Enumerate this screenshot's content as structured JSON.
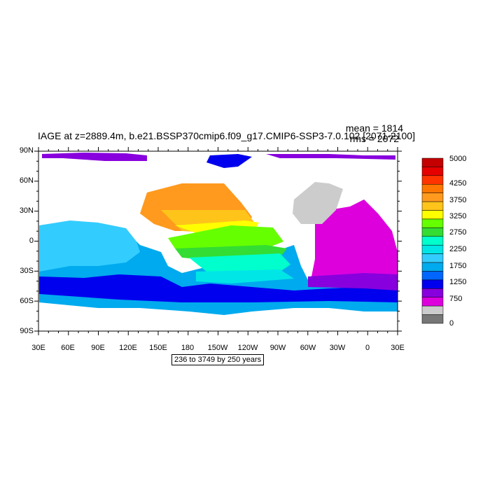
{
  "title": "IAGE at z=2889.4m, b.e21.BSSP370cmip6.f09_g17.CMIP6-SSP3-7.0.102 [2071-2100]",
  "stats": {
    "mean": "mean = 1814",
    "rms": "rms = 2072"
  },
  "lat_labels": [
    "90N",
    "60N",
    "30N",
    "0",
    "30S",
    "60S",
    "90S"
  ],
  "lon_labels": [
    "30E",
    "60E",
    "90E",
    "120E",
    "150E",
    "180",
    "150W",
    "120W",
    "90W",
    "60W",
    "30W",
    "0",
    "30E"
  ],
  "colorbar": {
    "labels": [
      "5000",
      "4250",
      "3750",
      "3250",
      "2750",
      "2250",
      "1750",
      "1250",
      "750",
      "0"
    ],
    "colors": [
      "#c40000",
      "#e60000",
      "#ff3300",
      "#ff7700",
      "#ff9a1e",
      "#ffc41a",
      "#ffff00",
      "#66ff00",
      "#33dd33",
      "#00ffcc",
      "#00e6e6",
      "#33ccff",
      "#00aaee",
      "#0066ff",
      "#0000ee",
      "#8800dd",
      "#dd00dd",
      "#cccccc",
      "#777777"
    ]
  },
  "info_box": "236 to 3749 by 250 years",
  "legend": {
    "land_color": "#ffffff",
    "missing_color": "#cccccc"
  }
}
